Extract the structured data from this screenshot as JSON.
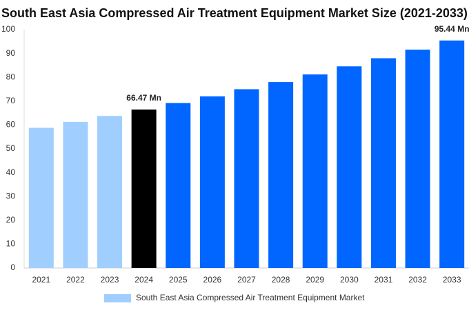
{
  "chart_data": {
    "type": "bar",
    "title": "South East Asia Compressed Air Treatment Equipment Market Size (2021-2033)",
    "categories": [
      "2021",
      "2022",
      "2023",
      "2024",
      "2025",
      "2026",
      "2027",
      "2028",
      "2029",
      "2030",
      "2031",
      "2032",
      "2033"
    ],
    "series": [
      {
        "name": "South East Asia Compressed Air Treatment Equipment Market",
        "color": "#a0cfff",
        "colors": [
          "#a0cfff",
          "#a0cfff",
          "#a0cfff",
          "#000000",
          "#0066ff",
          "#0066ff",
          "#0066ff",
          "#0066ff",
          "#0066ff",
          "#0066ff",
          "#0066ff",
          "#0066ff",
          "#0066ff"
        ],
        "values": [
          58.8,
          61.3,
          63.8,
          66.47,
          69.2,
          72.0,
          75.0,
          78.0,
          81.2,
          84.6,
          88.0,
          91.6,
          95.44
        ],
        "value_labels": [
          null,
          null,
          null,
          "66.47 Mn",
          null,
          null,
          null,
          null,
          null,
          null,
          null,
          null,
          "95.44 Mn"
        ]
      }
    ],
    "ylim": [
      0,
      100
    ],
    "yticks": [
      0,
      10,
      20,
      30,
      40,
      50,
      60,
      70,
      80,
      90,
      100
    ],
    "grid": false
  }
}
